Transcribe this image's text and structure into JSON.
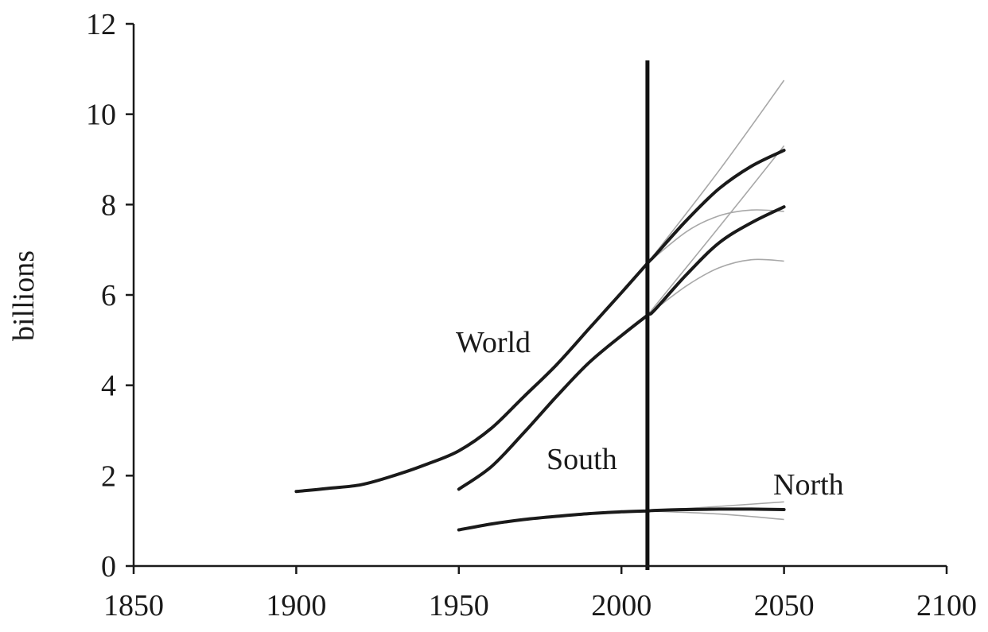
{
  "chart_data": {
    "type": "line",
    "title": "",
    "xlabel": "",
    "ylabel": "billions",
    "xlim": [
      1850,
      2100
    ],
    "ylim": [
      0,
      12
    ],
    "x_ticks": [
      1850,
      1900,
      1950,
      2000,
      2050,
      2100
    ],
    "y_ticks": [
      0,
      2,
      4,
      6,
      8,
      10,
      12
    ],
    "x_tick_labels": [
      "1850",
      "1900",
      "1950",
      "2000",
      "2050",
      "2100"
    ],
    "y_tick_labels": [
      "0",
      "2",
      "4",
      "6",
      "8",
      "10",
      "12"
    ],
    "grid": false,
    "legend": "none",
    "vertical_line_x": 2008,
    "series": [
      {
        "name": "World",
        "x": [
          1900,
          1910,
          1920,
          1930,
          1940,
          1950,
          1960,
          1970,
          1980,
          1990,
          2000,
          2008,
          2010,
          2020,
          2030,
          2040,
          2050
        ],
        "values": [
          1.65,
          1.72,
          1.8,
          2.0,
          2.25,
          2.55,
          3.05,
          3.75,
          4.45,
          5.25,
          6.05,
          6.7,
          6.85,
          7.65,
          8.35,
          8.85,
          9.2
        ]
      },
      {
        "name": "South",
        "x": [
          1950,
          1960,
          1970,
          1980,
          1990,
          2000,
          2008,
          2010,
          2020,
          2030,
          2040,
          2050
        ],
        "values": [
          1.7,
          2.2,
          2.95,
          3.75,
          4.5,
          5.1,
          5.55,
          5.65,
          6.45,
          7.15,
          7.6,
          7.95
        ]
      },
      {
        "name": "North",
        "x": [
          1950,
          1960,
          1970,
          1980,
          1990,
          2000,
          2008,
          2010,
          2020,
          2030,
          2040,
          2050
        ],
        "values": [
          0.8,
          0.93,
          1.03,
          1.1,
          1.16,
          1.2,
          1.22,
          1.23,
          1.25,
          1.26,
          1.26,
          1.25
        ]
      }
    ],
    "projection_variants": [
      {
        "base": "World",
        "x": [
          2008,
          2030,
          2050
        ],
        "values": [
          6.7,
          8.75,
          10.75
        ]
      },
      {
        "base": "World",
        "x": [
          2008,
          2020,
          2030,
          2040,
          2050
        ],
        "values": [
          6.7,
          7.4,
          7.75,
          7.88,
          7.85
        ]
      },
      {
        "base": "South",
        "x": [
          2008,
          2030,
          2050
        ],
        "values": [
          5.55,
          7.5,
          9.3
        ]
      },
      {
        "base": "South",
        "x": [
          2008,
          2020,
          2030,
          2040,
          2050
        ],
        "values": [
          5.55,
          6.2,
          6.6,
          6.78,
          6.75
        ]
      },
      {
        "base": "North",
        "x": [
          2008,
          2030,
          2050
        ],
        "values": [
          1.22,
          1.32,
          1.42
        ]
      },
      {
        "base": "North",
        "x": [
          2008,
          2030,
          2050
        ],
        "values": [
          1.22,
          1.15,
          1.03
        ]
      }
    ]
  }
}
